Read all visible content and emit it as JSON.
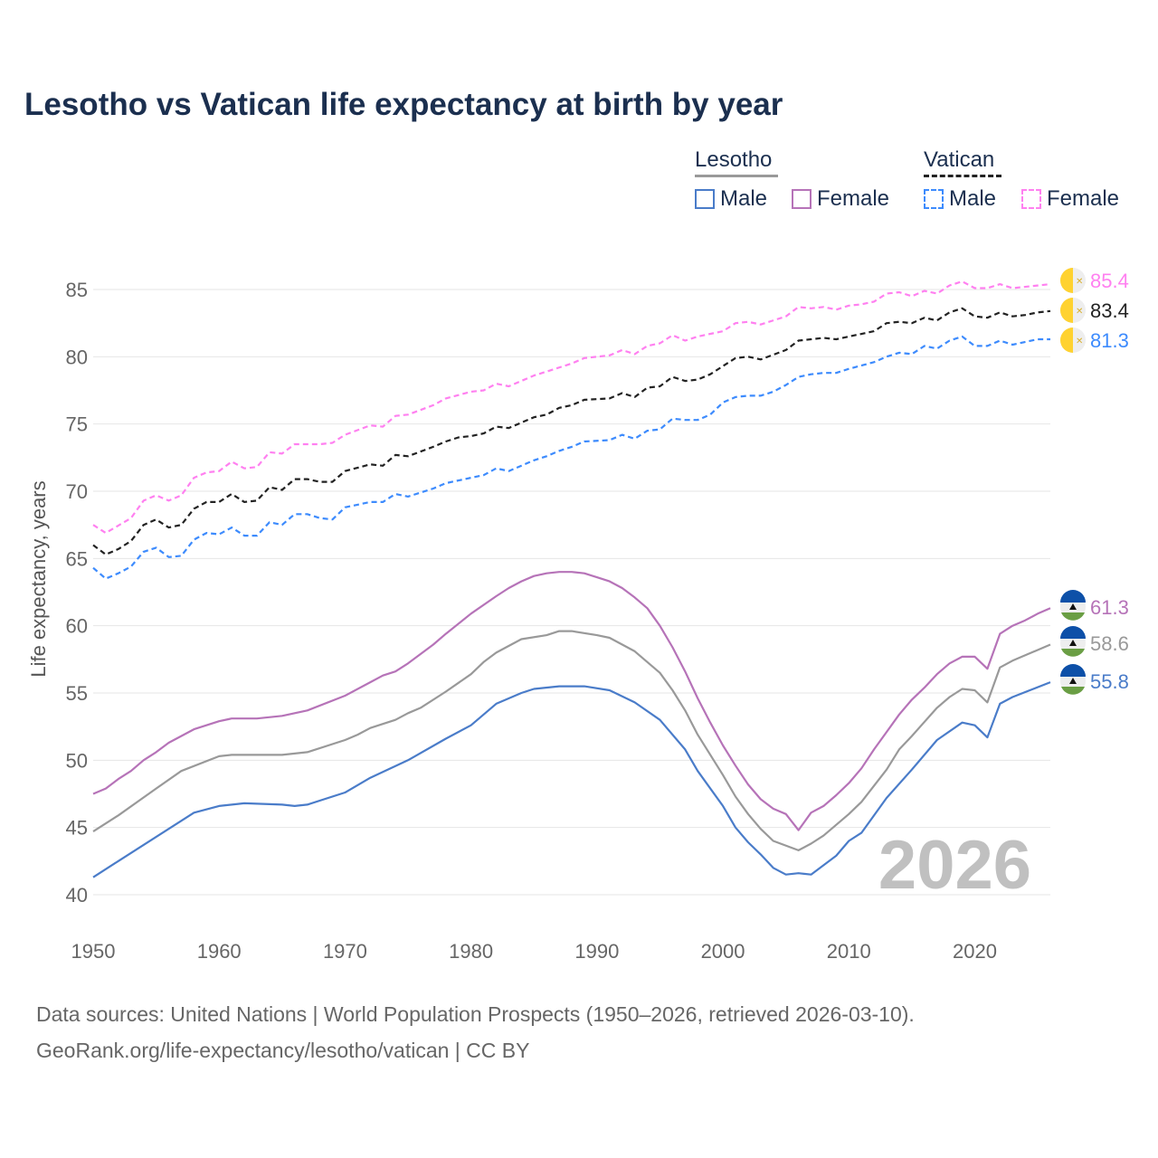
{
  "title": "Lesotho vs Vatican life expectancy at birth by year",
  "legend": {
    "lesotho": {
      "label": "Lesotho",
      "male": "Male",
      "female": "Female"
    },
    "vatican": {
      "label": "Vatican",
      "male": "Male",
      "female": "Female"
    }
  },
  "sources": {
    "line1": "Data sources: United Nations | World Population Prospects (1950–2026, retrieved 2026-03-10).",
    "line2": "GeoRank.org/life-expectancy/lesotho/vatican | CC BY"
  },
  "chart_data": {
    "type": "line",
    "title": "Lesotho vs Vatican life expectancy at birth by year",
    "xlabel": "",
    "ylabel": "Life expectancy, years",
    "xlim": [
      1950,
      2026
    ],
    "ylim": [
      40,
      87
    ],
    "xticks": [
      "1950",
      "1960",
      "1970",
      "1980",
      "1990",
      "2000",
      "2010",
      "2020"
    ],
    "yticks": [
      "40",
      "45",
      "50",
      "55",
      "60",
      "65",
      "70",
      "75",
      "80",
      "85"
    ],
    "year_watermark": "2026",
    "grid": true,
    "legend_position": "top-right",
    "series": [
      {
        "name": "Vatican Female",
        "country": "Vatican",
        "sex": "Female",
        "color": "#ff80f0",
        "dashed": true,
        "end_label": "85.4",
        "x": [
          1950,
          1951,
          1953,
          1954,
          1955,
          1956,
          1957,
          1958,
          1959,
          1960,
          1961,
          1962,
          1963,
          1964,
          1965,
          1966,
          1968,
          1969,
          1970,
          1972,
          1973,
          1974,
          1975,
          1977,
          1978,
          1980,
          1981,
          1982,
          1983,
          1985,
          1986,
          1988,
          1989,
          1991,
          1992,
          1993,
          1994,
          1995,
          1996,
          1997,
          1998,
          2000,
          2001,
          2002,
          2003,
          2005,
          2006,
          2007,
          2008,
          2009,
          2010,
          2011,
          2012,
          2013,
          2014,
          2015,
          2016,
          2017,
          2018,
          2019,
          2020,
          2021,
          2022,
          2023,
          2026
        ],
        "y": [
          67.5,
          66.9,
          68.0,
          69.3,
          69.7,
          69.3,
          69.7,
          71.0,
          71.4,
          71.5,
          72.2,
          71.7,
          71.8,
          72.9,
          72.8,
          73.5,
          73.5,
          73.6,
          74.2,
          74.9,
          74.8,
          75.6,
          75.7,
          76.4,
          76.9,
          77.4,
          77.5,
          78.0,
          77.8,
          78.6,
          78.9,
          79.5,
          79.9,
          80.1,
          80.5,
          80.2,
          80.8,
          81.0,
          81.6,
          81.2,
          81.5,
          81.9,
          82.5,
          82.6,
          82.4,
          83.0,
          83.7,
          83.6,
          83.7,
          83.5,
          83.8,
          83.9,
          84.1,
          84.7,
          84.8,
          84.5,
          84.9,
          84.7,
          85.3,
          85.6,
          85.1,
          85.1,
          85.4,
          85.1,
          85.4
        ]
      },
      {
        "name": "Vatican Total",
        "country": "Vatican",
        "sex": "Total",
        "color": "#222222",
        "dashed": true,
        "end_label": "83.4",
        "x": [
          1950,
          1951,
          1952,
          1953,
          1954,
          1955,
          1956,
          1957,
          1958,
          1959,
          1960,
          1961,
          1962,
          1963,
          1964,
          1965,
          1966,
          1967,
          1968,
          1969,
          1970,
          1972,
          1973,
          1974,
          1975,
          1977,
          1978,
          1979,
          1980,
          1981,
          1982,
          1983,
          1985,
          1986,
          1987,
          1988,
          1989,
          1991,
          1992,
          1993,
          1994,
          1995,
          1996,
          1997,
          1998,
          1999,
          2000,
          2001,
          2002,
          2003,
          2005,
          2006,
          2007,
          2008,
          2009,
          2010,
          2012,
          2013,
          2014,
          2015,
          2016,
          2017,
          2018,
          2019,
          2020,
          2021,
          2022,
          2023,
          2024,
          2025,
          2026
        ],
        "y": [
          66.0,
          65.3,
          65.7,
          66.3,
          67.5,
          67.9,
          67.3,
          67.5,
          68.7,
          69.2,
          69.2,
          69.8,
          69.2,
          69.3,
          70.3,
          70.1,
          70.9,
          70.9,
          70.7,
          70.7,
          71.5,
          72.0,
          71.9,
          72.7,
          72.6,
          73.3,
          73.7,
          74.0,
          74.1,
          74.3,
          74.8,
          74.7,
          75.5,
          75.7,
          76.2,
          76.4,
          76.8,
          76.9,
          77.3,
          77.0,
          77.7,
          77.8,
          78.5,
          78.2,
          78.3,
          78.7,
          79.3,
          79.9,
          80.0,
          79.8,
          80.5,
          81.2,
          81.3,
          81.4,
          81.3,
          81.5,
          81.9,
          82.5,
          82.6,
          82.5,
          82.9,
          82.7,
          83.3,
          83.6,
          83.0,
          82.9,
          83.3,
          83.0,
          83.1,
          83.3,
          83.4
        ]
      },
      {
        "name": "Vatican Male",
        "country": "Vatican",
        "sex": "Male",
        "color": "#3d8bfd",
        "dashed": true,
        "end_label": "81.3",
        "x": [
          1950,
          1951,
          1952,
          1953,
          1954,
          1955,
          1956,
          1957,
          1958,
          1959,
          1960,
          1961,
          1962,
          1963,
          1964,
          1965,
          1966,
          1967,
          1968,
          1969,
          1970,
          1972,
          1973,
          1974,
          1975,
          1977,
          1978,
          1980,
          1981,
          1982,
          1983,
          1985,
          1986,
          1987,
          1988,
          1989,
          1991,
          1992,
          1993,
          1994,
          1995,
          1996,
          1997,
          1998,
          1999,
          2000,
          2001,
          2002,
          2003,
          2004,
          2005,
          2006,
          2007,
          2008,
          2009,
          2010,
          2012,
          2013,
          2014,
          2015,
          2016,
          2017,
          2018,
          2019,
          2020,
          2021,
          2022,
          2023,
          2025,
          2026
        ],
        "y": [
          64.3,
          63.5,
          63.9,
          64.4,
          65.5,
          65.8,
          65.1,
          65.2,
          66.4,
          66.9,
          66.8,
          67.3,
          66.7,
          66.7,
          67.7,
          67.5,
          68.3,
          68.3,
          68.0,
          67.9,
          68.8,
          69.2,
          69.2,
          69.8,
          69.6,
          70.2,
          70.6,
          71.0,
          71.2,
          71.7,
          71.5,
          72.3,
          72.6,
          73.0,
          73.3,
          73.7,
          73.8,
          74.2,
          73.9,
          74.5,
          74.6,
          75.4,
          75.3,
          75.3,
          75.7,
          76.6,
          77.0,
          77.1,
          77.1,
          77.4,
          77.9,
          78.5,
          78.7,
          78.8,
          78.8,
          79.1,
          79.6,
          80.0,
          80.3,
          80.2,
          80.8,
          80.6,
          81.2,
          81.5,
          80.8,
          80.8,
          81.2,
          80.9,
          81.3,
          81.3
        ]
      },
      {
        "name": "Lesotho Female",
        "country": "Lesotho",
        "sex": "Female",
        "color": "#b673b8",
        "dashed": false,
        "end_label": "61.3",
        "x": [
          1950,
          1951,
          1952,
          1953,
          1954,
          1955,
          1956,
          1958,
          1960,
          1961,
          1963,
          1965,
          1967,
          1970,
          1972,
          1973,
          1974,
          1975,
          1977,
          1978,
          1980,
          1982,
          1983,
          1984,
          1985,
          1986,
          1987,
          1988,
          1989,
          1990,
          1991,
          1992,
          1993,
          1994,
          1995,
          1996,
          1997,
          1998,
          1999,
          2000,
          2001,
          2002,
          2003,
          2004,
          2005,
          2006,
          2007,
          2008,
          2009,
          2010,
          2011,
          2012,
          2013,
          2014,
          2015,
          2016,
          2017,
          2018,
          2019,
          2020,
          2021,
          2022,
          2023,
          2024,
          2025,
          2026
        ],
        "y": [
          47.5,
          47.9,
          48.6,
          49.2,
          50.0,
          50.6,
          51.3,
          52.3,
          52.9,
          53.1,
          53.1,
          53.3,
          53.7,
          54.8,
          55.8,
          56.3,
          56.6,
          57.2,
          58.6,
          59.4,
          60.9,
          62.2,
          62.8,
          63.3,
          63.7,
          63.9,
          64.0,
          64.0,
          63.9,
          63.6,
          63.3,
          62.8,
          62.1,
          61.3,
          60.0,
          58.4,
          56.6,
          54.6,
          52.8,
          51.1,
          49.6,
          48.2,
          47.1,
          46.4,
          46.0,
          44.8,
          46.1,
          46.6,
          47.4,
          48.3,
          49.4,
          50.8,
          52.1,
          53.4,
          54.5,
          55.4,
          56.4,
          57.2,
          57.7,
          57.7,
          56.8,
          59.4,
          60.0,
          60.4,
          60.9,
          61.3
        ]
      },
      {
        "name": "Lesotho Total",
        "country": "Lesotho",
        "sex": "Total",
        "color": "#999999",
        "dashed": false,
        "end_label": "58.6",
        "x": [
          1950,
          1952,
          1955,
          1957,
          1960,
          1961,
          1965,
          1967,
          1970,
          1971,
          1972,
          1974,
          1975,
          1976,
          1978,
          1980,
          1981,
          1982,
          1984,
          1986,
          1987,
          1988,
          1990,
          1991,
          1993,
          1995,
          1996,
          1997,
          1998,
          2000,
          2001,
          2002,
          2003,
          2004,
          2006,
          2007,
          2008,
          2010,
          2011,
          2013,
          2014,
          2015,
          2017,
          2018,
          2019,
          2020,
          2021,
          2022,
          2023,
          2026
        ],
        "y": [
          44.7,
          45.9,
          47.9,
          49.2,
          50.3,
          50.4,
          50.4,
          50.6,
          51.5,
          51.9,
          52.4,
          53.0,
          53.5,
          53.9,
          55.1,
          56.4,
          57.3,
          58.0,
          59.0,
          59.3,
          59.6,
          59.6,
          59.3,
          59.1,
          58.1,
          56.5,
          55.2,
          53.7,
          51.9,
          48.9,
          47.3,
          46.0,
          44.9,
          44.0,
          43.3,
          43.8,
          44.4,
          46.0,
          46.9,
          49.3,
          50.8,
          51.8,
          53.9,
          54.7,
          55.3,
          55.2,
          54.3,
          56.9,
          57.4,
          58.6
        ]
      },
      {
        "name": "Lesotho Male",
        "country": "Lesotho",
        "sex": "Male",
        "color": "#4a7cc9",
        "dashed": false,
        "end_label": "55.8",
        "x": [
          1950,
          1952,
          1955,
          1958,
          1960,
          1962,
          1965,
          1966,
          1967,
          1970,
          1972,
          1975,
          1978,
          1980,
          1982,
          1984,
          1985,
          1987,
          1989,
          1991,
          1993,
          1995,
          1997,
          1998,
          2000,
          2001,
          2002,
          2003,
          2004,
          2005,
          2006,
          2007,
          2009,
          2010,
          2011,
          2013,
          2015,
          2017,
          2019,
          2020,
          2021,
          2022,
          2023,
          2026
        ],
        "y": [
          41.3,
          42.5,
          44.3,
          46.1,
          46.6,
          46.8,
          46.7,
          46.6,
          46.7,
          47.6,
          48.7,
          50.0,
          51.6,
          52.6,
          54.2,
          55.0,
          55.3,
          55.5,
          55.5,
          55.2,
          54.3,
          53.0,
          50.8,
          49.2,
          46.6,
          45.0,
          43.9,
          43.0,
          42.0,
          41.5,
          41.6,
          41.5,
          42.9,
          44.0,
          44.6,
          47.2,
          49.3,
          51.5,
          52.8,
          52.6,
          51.7,
          54.2,
          54.7,
          55.8
        ]
      }
    ]
  }
}
